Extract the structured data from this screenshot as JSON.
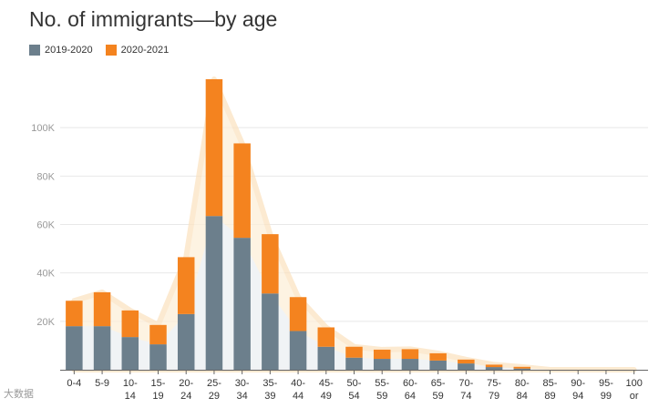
{
  "watermark": "大数据",
  "chart_data": {
    "type": "bar",
    "stacked": true,
    "title": "No. of immigrants—by age",
    "xlabel": "",
    "ylabel": "",
    "ylim": [
      0,
      120000
    ],
    "yticks": [
      20000,
      40000,
      60000,
      80000,
      100000
    ],
    "ytick_labels": [
      "20K",
      "40K",
      "60K",
      "80K",
      "100K"
    ],
    "categories": [
      [
        "0-4"
      ],
      [
        "5-9"
      ],
      [
        "10-",
        "14"
      ],
      [
        "15-",
        "19"
      ],
      [
        "20-",
        "24"
      ],
      [
        "25-",
        "29"
      ],
      [
        "30-",
        "34"
      ],
      [
        "35-",
        "39"
      ],
      [
        "40-",
        "44"
      ],
      [
        "45-",
        "49"
      ],
      [
        "50-",
        "54"
      ],
      [
        "55-",
        "59"
      ],
      [
        "60-",
        "64"
      ],
      [
        "65-",
        "59"
      ],
      [
        "70-",
        "74"
      ],
      [
        "75-",
        "79"
      ],
      [
        "80-",
        "84"
      ],
      [
        "85-",
        "89"
      ],
      [
        "90-",
        "94"
      ],
      [
        "95-",
        "99"
      ],
      [
        "100",
        "or"
      ]
    ],
    "legend_position": "top-left",
    "series": [
      {
        "name": "2019-2020",
        "color": "#6c7f8c",
        "values": [
          18000,
          18000,
          13500,
          10500,
          23000,
          63500,
          54500,
          31500,
          16000,
          9500,
          5000,
          4500,
          4500,
          3800,
          2600,
          1100,
          500,
          0,
          0,
          0,
          0
        ]
      },
      {
        "name": "2020-2021",
        "color": "#f4831f",
        "values": [
          10500,
          14000,
          11000,
          8000,
          23500,
          56500,
          39000,
          24500,
          14000,
          8000,
          4500,
          3800,
          4000,
          3000,
          1600,
          1000,
          700,
          0,
          0,
          0,
          0
        ]
      }
    ]
  }
}
